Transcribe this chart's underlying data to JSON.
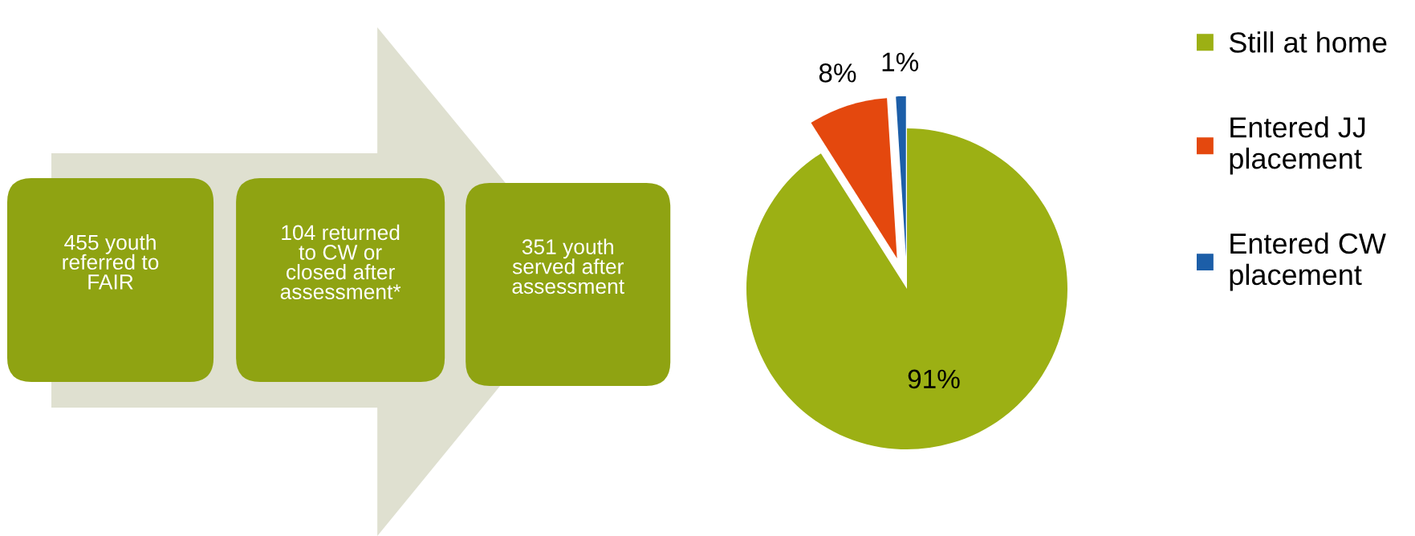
{
  "chart_data": [
    {
      "type": "other",
      "annotations": [
        "455 youth\nreferred to\nFAIR",
        "104 returned\nto CW or\nclosed after\nassessment*",
        "351 youth\nserved after\nassessment"
      ]
    },
    {
      "type": "pie",
      "categories": [
        "Still at home",
        "Entered JJ\nplacement",
        "Entered CW\nplacement"
      ],
      "values": [
        91,
        8,
        1
      ],
      "colors": [
        "#9cb014",
        "#e4480e",
        "#1c5ea8"
      ],
      "value_labels": [
        "91%",
        "8%",
        "1%"
      ],
      "legend": "right"
    }
  ]
}
